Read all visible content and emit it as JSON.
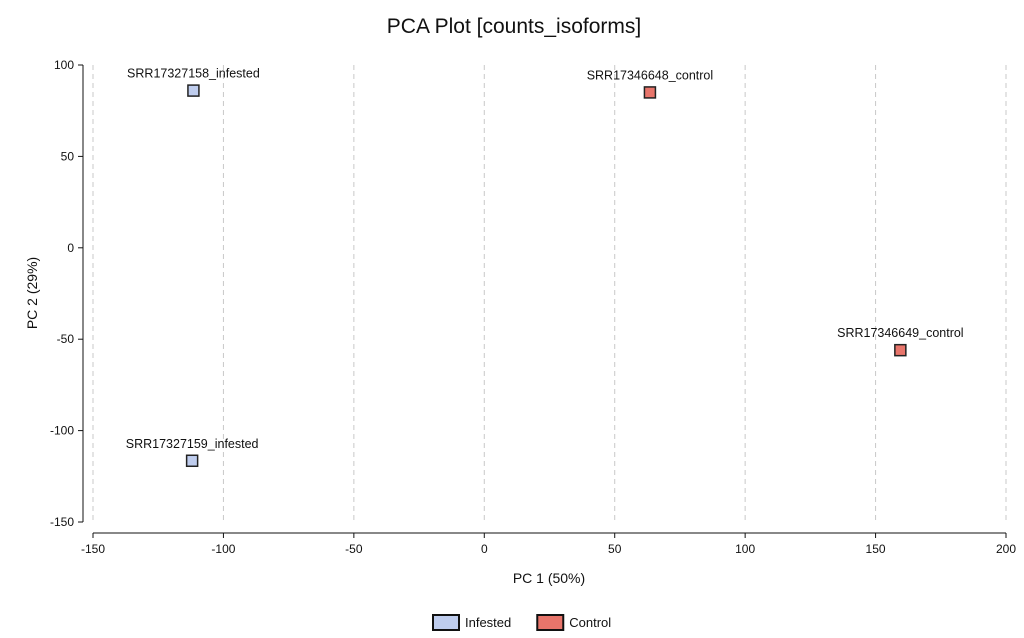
{
  "chart_data": {
    "type": "scatter",
    "title": "PCA Plot [counts_isoforms]",
    "xlabel": "PC 1 (50%)",
    "ylabel": "PC 2 (29%)",
    "xlim": [
      -150,
      200
    ],
    "ylim": [
      -150,
      100
    ],
    "xticks": [
      -150,
      -100,
      -50,
      0,
      50,
      100,
      150,
      200
    ],
    "yticks": [
      100,
      50,
      0,
      -50,
      -100,
      -150
    ],
    "grid": "vertical dashed",
    "legend_position": "bottom-center",
    "series": [
      {
        "name": "Infested",
        "color": "#bfcdee",
        "points": [
          {
            "label": "SRR17327158_infested",
            "x": -111.5,
            "y": 86
          },
          {
            "label": "SRR17327159_infested",
            "x": -112,
            "y": -116.5
          }
        ]
      },
      {
        "name": "Control",
        "color": "#e8756b",
        "points": [
          {
            "label": "SRR17346648_control",
            "x": 63.5,
            "y": 85
          },
          {
            "label": "SRR17346649_control",
            "x": 159.5,
            "y": -56
          }
        ]
      }
    ]
  }
}
